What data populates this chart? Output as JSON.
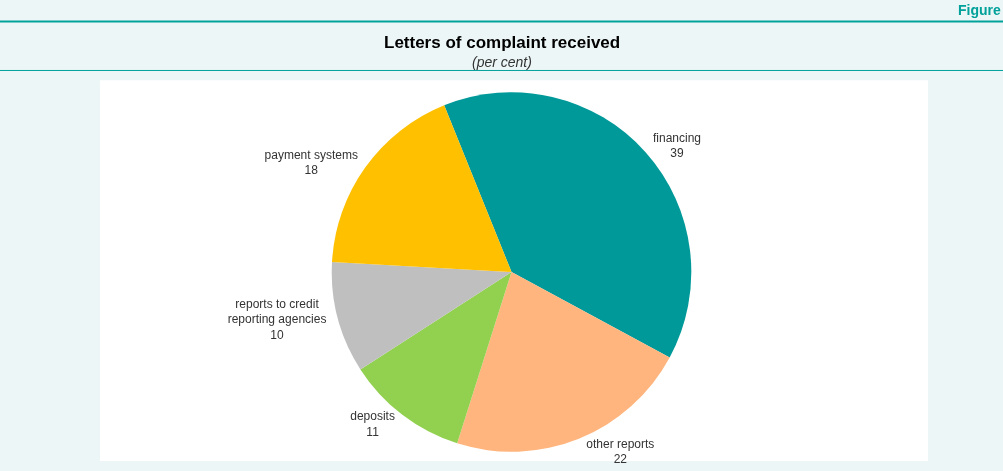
{
  "chart_data": {
    "type": "pie",
    "title": "Letters of complaint received",
    "subtitle": "(per cent)",
    "annotations": [
      "Figure"
    ],
    "categories": [
      "financing",
      "other reports",
      "deposits",
      "reports to credit reporting agencies",
      "payment systems"
    ],
    "values": [
      39,
      22,
      11,
      10,
      18
    ],
    "colors": [
      "#009999",
      "#ffb57d",
      "#92d050",
      "#bfbfbf",
      "#ffc000"
    ],
    "data_labels": true,
    "legend": false
  }
}
